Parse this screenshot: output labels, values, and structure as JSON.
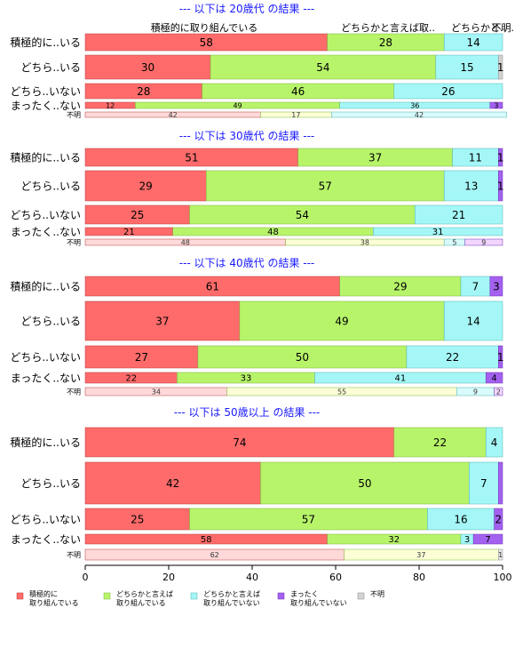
{
  "colors": {
    "c1": "#ff6b6b",
    "c2": "#b7f46a",
    "c3": "#a5f7f7",
    "c4": "#a461f0",
    "c5": "#d3d3d3",
    "title": "#1a1aff"
  },
  "legend": [
    {
      "lines": [
        "積極的に",
        "取り組んでいる"
      ]
    },
    {
      "lines": [
        "どちらかと言えば",
        "取り組んでいる"
      ]
    },
    {
      "lines": [
        "どちらかと言えば",
        "取り組んでいない"
      ]
    },
    {
      "lines": [
        "まったく",
        "取り組んでいない"
      ]
    },
    {
      "lines": [
        "不明"
      ]
    }
  ],
  "header_labels": [
    "積極的に取り組んでいる",
    "どちらかと言えば取..",
    "どちらかと..",
    "不明.."
  ],
  "chart_data": {
    "type": "bar",
    "orientation": "horizontal",
    "stacked": "percent",
    "xlim": [
      0,
      100
    ],
    "xticks": [
      0,
      20,
      40,
      60,
      80,
      100
    ],
    "legend_position": "bottom",
    "series_names": [
      "積極的に取り組んでいる",
      "どちらかと言えば取り組んでいる",
      "どちらかと言えば取り組んでいない",
      "まったく取り組んでいない",
      "不明"
    ],
    "panels": [
      {
        "title": "--- 以下は 20歳代 の結果 ---",
        "rows": [
          {
            "label": "積極的に..いる",
            "values": [
              58,
              28,
              14,
              0,
              0
            ],
            "labels": [
              "58",
              "28",
              "14",
              "",
              ""
            ]
          },
          {
            "label": "どちら..いる",
            "values": [
              30,
              54,
              15,
              0,
              1
            ],
            "labels": [
              "30",
              "54",
              "15",
              "",
              "1"
            ]
          },
          {
            "label": "どちら..いない",
            "values": [
              28,
              46,
              26,
              0,
              0
            ],
            "labels": [
              "28",
              "46",
              "26",
              "",
              ""
            ]
          },
          {
            "label": "まったく..ない",
            "values": [
              12,
              49,
              36,
              3,
              0
            ],
            "labels": [
              "12",
              "49",
              "36",
              "3",
              ""
            ]
          },
          {
            "label": "不明",
            "values": [
              42,
              17,
              42,
              0,
              0
            ],
            "labels": [
              "42",
              "17",
              "42",
              "",
              ""
            ]
          }
        ]
      },
      {
        "title": "--- 以下は 30歳代 の結果 ---",
        "rows": [
          {
            "label": "積極的に..いる",
            "values": [
              51,
              37,
              11,
              1,
              0
            ],
            "labels": [
              "51",
              "37",
              "11",
              "1",
              ""
            ]
          },
          {
            "label": "どちら..いる",
            "values": [
              29,
              57,
              13,
              1,
              0
            ],
            "labels": [
              "29",
              "57",
              "13",
              "1",
              ""
            ]
          },
          {
            "label": "どちら..いない",
            "values": [
              25,
              54,
              21,
              0,
              0
            ],
            "labels": [
              "25",
              "54",
              "21",
              "",
              ""
            ]
          },
          {
            "label": "まったく..ない",
            "values": [
              21,
              48,
              31,
              0,
              0
            ],
            "labels": [
              "21",
              "48",
              "31",
              "",
              ""
            ]
          },
          {
            "label": "不明",
            "values": [
              48,
              38,
              5,
              9,
              0
            ],
            "labels": [
              "48",
              "38",
              "5",
              "9",
              ""
            ]
          }
        ]
      },
      {
        "title": "--- 以下は 40歳代 の結果 ---",
        "rows": [
          {
            "label": "積極的に..いる",
            "values": [
              61,
              29,
              7,
              3,
              0
            ],
            "labels": [
              "61",
              "29",
              "7",
              "3",
              ""
            ]
          },
          {
            "label": "どちら..いる",
            "values": [
              37,
              49,
              14,
              0,
              0
            ],
            "labels": [
              "37",
              "49",
              "14",
              "",
              ""
            ]
          },
          {
            "label": "どちら..いない",
            "values": [
              27,
              50,
              22,
              1,
              0
            ],
            "labels": [
              "27",
              "50",
              "22",
              "1",
              ""
            ]
          },
          {
            "label": "まったく..ない",
            "values": [
              22,
              33,
              41,
              4,
              0
            ],
            "labels": [
              "22",
              "33",
              "41",
              "4",
              ""
            ]
          },
          {
            "label": "不明",
            "values": [
              34,
              55,
              9,
              2,
              0
            ],
            "labels": [
              "34",
              "55",
              "9",
              "2",
              ""
            ]
          }
        ]
      },
      {
        "title": "--- 以下は 50歳以上 の結果 ---",
        "rows": [
          {
            "label": "積極的に..いる",
            "values": [
              74,
              22,
              4,
              0,
              0
            ],
            "labels": [
              "74",
              "22",
              "4",
              "",
              ""
            ]
          },
          {
            "label": "どちら..いる",
            "values": [
              42,
              50,
              7,
              1,
              0
            ],
            "labels": [
              "42",
              "50",
              "7",
              "",
              ""
            ]
          },
          {
            "label": "どちら..いない",
            "values": [
              25,
              57,
              16,
              2,
              0
            ],
            "labels": [
              "25",
              "57",
              "16",
              "2",
              ""
            ]
          },
          {
            "label": "まったく..ない",
            "values": [
              58,
              32,
              3,
              7,
              0
            ],
            "labels": [
              "58",
              "32",
              "3",
              "7",
              ""
            ]
          },
          {
            "label": "不明",
            "values": [
              62,
              37,
              0,
              0,
              1
            ],
            "labels": [
              "62",
              "37",
              "",
              "",
              "1"
            ]
          }
        ]
      }
    ]
  }
}
